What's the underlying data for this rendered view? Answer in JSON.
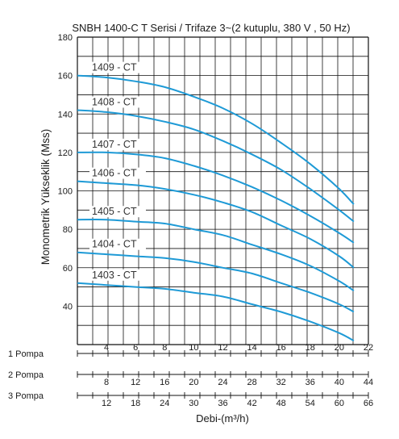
{
  "chart_data": {
    "type": "line",
    "title": "SNBH 1400-C T Serisi / Trifaze 3~(2 kutuplu, 380 V , 50 Hz)",
    "ylabel": "Monometrik Yükseklik (Mss)",
    "xlabel": "Debi-(m³/h)",
    "ylim": [
      20,
      180
    ],
    "yticks": [
      "40",
      "60",
      "80",
      "100",
      "120",
      "140",
      "160",
      "180"
    ],
    "xlim": [
      2,
      22
    ],
    "grid": true,
    "line_color": "#1e9ad6",
    "x_scales": [
      {
        "label": "1 Pompa",
        "ticks": [
          "4",
          "6",
          "8",
          "10",
          "12",
          "14",
          "16",
          "18",
          "20",
          "22"
        ]
      },
      {
        "label": "2 Pompa",
        "ticks": [
          "8",
          "12",
          "16",
          "20",
          "24",
          "28",
          "32",
          "36",
          "40",
          "44"
        ]
      },
      {
        "label": "3 Pompa",
        "ticks": [
          "12",
          "18",
          "24",
          "30",
          "36",
          "42",
          "48",
          "54",
          "60",
          "66"
        ]
      }
    ],
    "series": [
      {
        "name": "1409 - CT",
        "x": [
          2,
          4,
          6,
          8,
          10,
          12,
          14,
          16,
          18,
          20,
          21
        ],
        "y": [
          160,
          159,
          157,
          154,
          149,
          143,
          135,
          125,
          114,
          101,
          93
        ]
      },
      {
        "name": "1408 - CT",
        "x": [
          2,
          4,
          6,
          8,
          10,
          12,
          14,
          16,
          18,
          20,
          21
        ],
        "y": [
          142,
          141,
          139,
          136,
          132,
          126,
          119,
          111,
          101,
          90,
          84
        ]
      },
      {
        "name": "1407 - CT",
        "x": [
          2,
          4,
          6,
          8,
          10,
          12,
          14,
          16,
          18,
          20,
          21
        ],
        "y": [
          120,
          120,
          119,
          117,
          113,
          108,
          102,
          95,
          87,
          78,
          73
        ]
      },
      {
        "name": "1406 - CT",
        "x": [
          2,
          4,
          6,
          8,
          10,
          12,
          14,
          16,
          18,
          20,
          21
        ],
        "y": [
          105,
          104,
          103,
          101,
          98,
          94,
          89,
          82,
          75,
          66,
          60
        ]
      },
      {
        "name": "1405 - CT",
        "x": [
          2,
          4,
          6,
          8,
          10,
          12,
          14,
          16,
          18,
          20,
          21
        ],
        "y": [
          85,
          85,
          84,
          83,
          80,
          77,
          72,
          67,
          61,
          53,
          48
        ]
      },
      {
        "name": "1404 - CT",
        "x": [
          2,
          4,
          6,
          8,
          10,
          12,
          14,
          16,
          18,
          20,
          21
        ],
        "y": [
          68,
          67,
          66,
          65,
          63,
          60,
          57,
          52,
          47,
          41,
          37
        ]
      },
      {
        "name": "1403 - CT",
        "x": [
          2,
          4,
          6,
          8,
          10,
          12,
          14,
          16,
          18,
          20,
          21
        ],
        "y": [
          52,
          51,
          50,
          49,
          47,
          45,
          41,
          37,
          32,
          26,
          22
        ]
      }
    ]
  }
}
